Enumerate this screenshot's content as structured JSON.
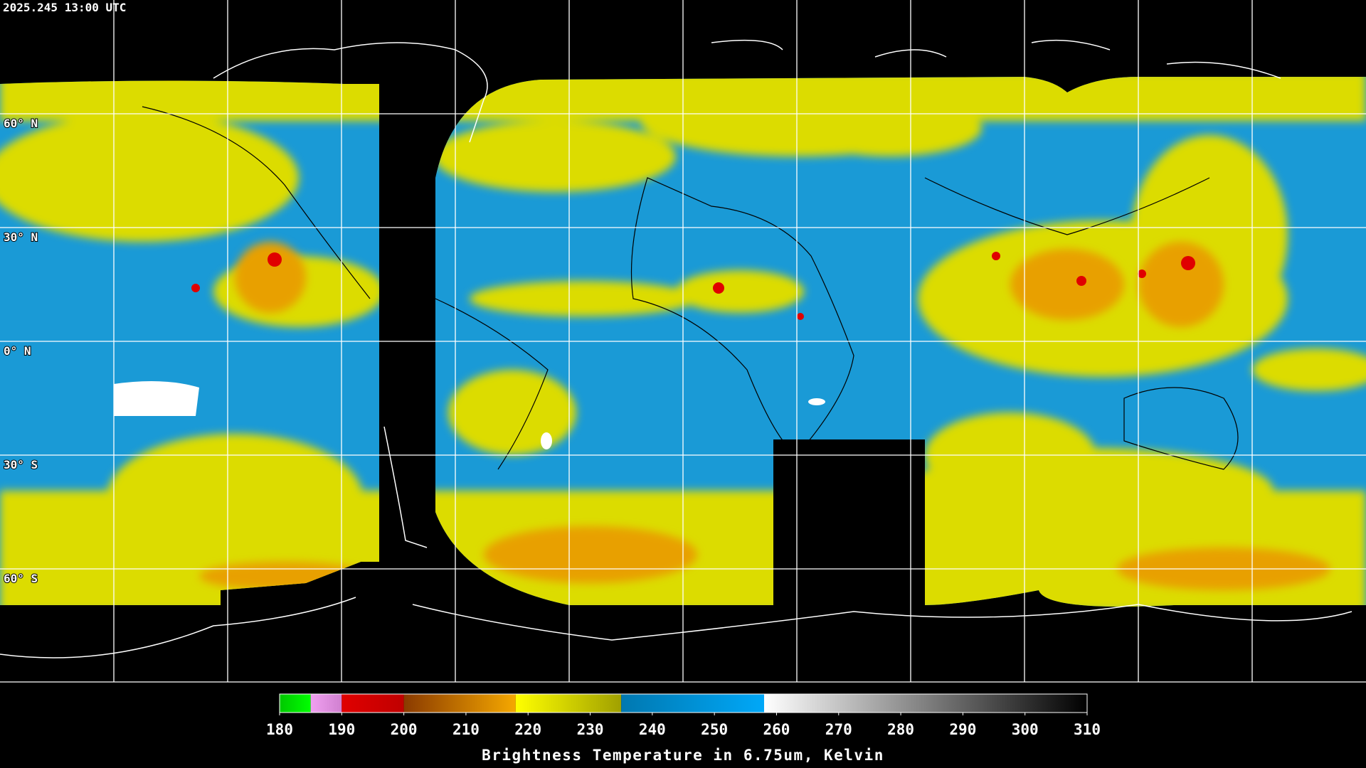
{
  "header": {
    "timestamp": "2025.245 13:00 UTC"
  },
  "map": {
    "lat_lines": [
      {
        "value": 60,
        "label": "60° N"
      },
      {
        "value": 30,
        "label": "30° N"
      },
      {
        "value": 0,
        "label": "0° N"
      },
      {
        "value": -30,
        "label": "30° S"
      },
      {
        "value": -60,
        "label": "60° S"
      }
    ]
  },
  "colorbar": {
    "title": "Brightness Temperature in 6.75um, Kelvin",
    "xlim": [
      180,
      310
    ],
    "xticks": [
      180,
      190,
      200,
      210,
      220,
      230,
      240,
      250,
      260,
      270,
      280,
      290,
      300,
      310
    ],
    "segments": [
      {
        "from": 180,
        "to": 185,
        "colors": [
          "#00c800",
          "#00ff00"
        ]
      },
      {
        "from": 185,
        "to": 190,
        "colors": [
          "#f0a0f0",
          "#d080d0"
        ]
      },
      {
        "from": 190,
        "to": 200,
        "colors": [
          "#e00000",
          "#c00000"
        ]
      },
      {
        "from": 200,
        "to": 218,
        "colors": [
          "#8a3a00",
          "#f5a800"
        ]
      },
      {
        "from": 218,
        "to": 235,
        "colors": [
          "#ffff00",
          "#a0a000"
        ]
      },
      {
        "from": 235,
        "to": 258,
        "colors": [
          "#0078b0",
          "#00a8f8"
        ]
      },
      {
        "from": 258,
        "to": 310,
        "colors": [
          "#ffffff",
          "#000000"
        ]
      }
    ]
  }
}
